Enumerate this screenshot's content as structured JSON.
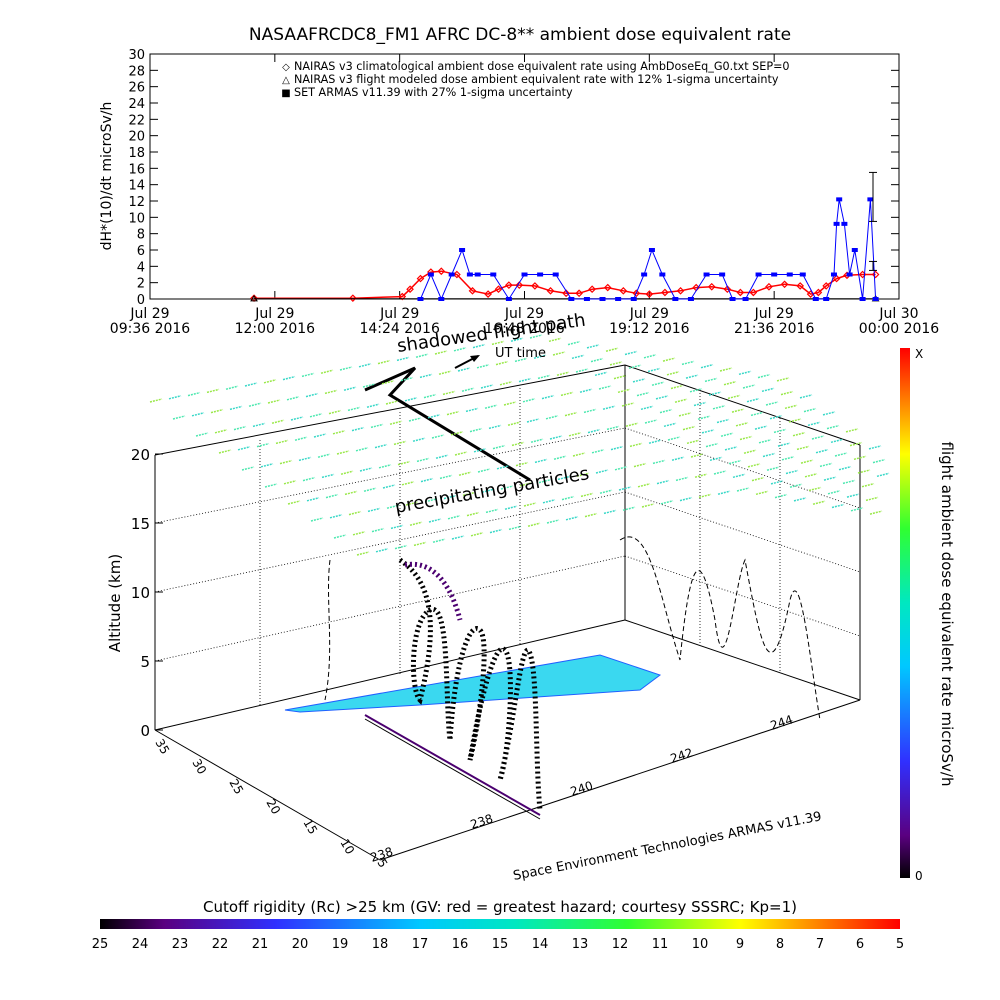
{
  "chart_data": [
    {
      "type": "line",
      "title": "NASAAFRCDC8_FM1 AFRC DC-8** ambient dose equivalent rate",
      "ylabel": "dH*(10)/dt microSv/h",
      "ylim": [
        0,
        30
      ],
      "yticks": [
        "0",
        "2",
        "4",
        "6",
        "8",
        "10",
        "12",
        "14",
        "16",
        "18",
        "20",
        "22",
        "24",
        "26",
        "28",
        "30"
      ],
      "xticks": [
        {
          "l1": "Jul 29",
          "l2": "09:36 2016"
        },
        {
          "l1": "Jul 29",
          "l2": "12:00 2016"
        },
        {
          "l1": "Jul 29",
          "l2": "14:24 2016"
        },
        {
          "l1": "Jul 29",
          "l2": "16:48 2016"
        },
        {
          "l1": "Jul 29",
          "l2": "19:12 2016"
        },
        {
          "l1": "Jul 29",
          "l2": "21:36 2016"
        },
        {
          "l1": "Jul 30",
          "l2": "00:00 2016"
        }
      ],
      "xlim_hours": [
        9.6,
        24.0
      ],
      "legend": [
        {
          "symbol": "◇",
          "color": "#ff0000",
          "label": "NAIRAS v3 climatological ambient dose equivalent rate using AmbDoseEq_G0.txt SEP=0"
        },
        {
          "symbol": "△",
          "color": "#000000",
          "label": "NAIRAS v3 flight modeled dose ambient equivalent rate with 12% 1-sigma uncertainty"
        },
        {
          "symbol": "■",
          "color": "#0000ff",
          "label": "SET ARMAS v11.39 with 27% 1-sigma uncertainty"
        }
      ],
      "series": [
        {
          "name": "NAIRAS v3 climatological ambient dose equivalent rate using AmbDoseEq_G0.txt SEP=0",
          "color": "#ff0000",
          "x": [
            11.6,
            13.5,
            14.45,
            14.6,
            14.8,
            15.0,
            15.2,
            15.5,
            15.8,
            16.1,
            16.3,
            16.5,
            16.7,
            17.0,
            17.3,
            17.6,
            17.85,
            18.1,
            18.4,
            18.7,
            18.95,
            19.2,
            19.5,
            19.8,
            20.1,
            20.4,
            20.7,
            20.95,
            21.2,
            21.5,
            21.8,
            22.1,
            22.3,
            22.45,
            22.6,
            22.8,
            23.0,
            23.3,
            23.55
          ],
          "y": [
            0.1,
            0.1,
            0.3,
            1.2,
            2.5,
            3.3,
            3.4,
            3.0,
            1.0,
            0.6,
            1.2,
            1.7,
            1.7,
            1.6,
            1.0,
            0.7,
            0.7,
            1.2,
            1.4,
            1.0,
            0.7,
            0.6,
            0.8,
            1.0,
            1.4,
            1.5,
            1.2,
            0.8,
            0.8,
            1.5,
            1.8,
            1.6,
            0.6,
            0.8,
            1.6,
            2.5,
            2.9,
            3.0,
            3.0
          ]
        },
        {
          "name": "NAIRAS v3 flight modeled dose ambient equivalent rate with 12% 1-sigma uncertainty",
          "color": "#000000",
          "x": [
            11.6,
            23.55
          ],
          "y": [
            0.02,
            0.02
          ]
        },
        {
          "name": "SET ARMAS v11.39 with 27% 1-sigma uncertainty",
          "color": "#0000ff",
          "x": [
            14.8,
            15.0,
            15.2,
            15.4,
            15.6,
            15.75,
            15.9,
            16.2,
            16.5,
            16.8,
            17.1,
            17.4,
            17.7,
            18.0,
            18.3,
            18.6,
            18.9,
            19.1,
            19.25,
            19.45,
            19.7,
            20.0,
            20.3,
            20.6,
            20.8,
            21.05,
            21.3,
            21.6,
            21.9,
            22.15,
            22.4,
            22.6,
            22.75,
            22.8,
            22.85,
            22.95,
            23.05,
            23.15,
            23.3,
            23.45,
            23.55
          ],
          "y": [
            0,
            3.0,
            0,
            3.0,
            6.0,
            3.0,
            3.0,
            3.0,
            0,
            3.0,
            3.0,
            3.0,
            0,
            0,
            0,
            0,
            0,
            3.0,
            6.0,
            3.0,
            0,
            0,
            3.0,
            3.0,
            0,
            0,
            3.0,
            3.0,
            3.0,
            3.0,
            0,
            0,
            3.0,
            9.2,
            12.2,
            9.2,
            3.0,
            6.0,
            0,
            12.2,
            0
          ]
        }
      ],
      "error_bars": [
        {
          "x": 23.5,
          "y": 12.2,
          "low": 9.5,
          "high": 15.5
        },
        {
          "x": 23.5,
          "y": 4.0,
          "low": 3.5,
          "high": 4.6
        }
      ]
    },
    {
      "type": "scatter",
      "xlabel": "Space Environment Technologies ARMAS v11.39",
      "ylabel": "Altitude (km)",
      "zlim": [
        0,
        20
      ],
      "zticks": [
        "0",
        "5",
        "10",
        "15",
        "20"
      ],
      "lat_ticks": [
        "5",
        "10",
        "15",
        "20",
        "25",
        "30",
        "35"
      ],
      "lon_ticks": [
        "238",
        "238",
        "240",
        "242",
        "244"
      ],
      "annotations": [
        "UT time",
        "shadowed flight path",
        "precipitating particles"
      ],
      "right_colorbar": {
        "label": "flight ambient dose equivalent rate microSv/h",
        "top_label": "X",
        "bottom_label": "0"
      },
      "bottom_colorbar": {
        "label": "Cutoff rigidity (Rc) >25 km (GV: red = greatest hazard; courtesy SSSRC; Kp=1)",
        "ticks": [
          "25",
          "24",
          "23",
          "22",
          "21",
          "20",
          "19",
          "18",
          "17",
          "16",
          "15",
          "14",
          "13",
          "12",
          "11",
          "10",
          "9",
          "8",
          "7",
          "6",
          "5"
        ]
      }
    }
  ]
}
